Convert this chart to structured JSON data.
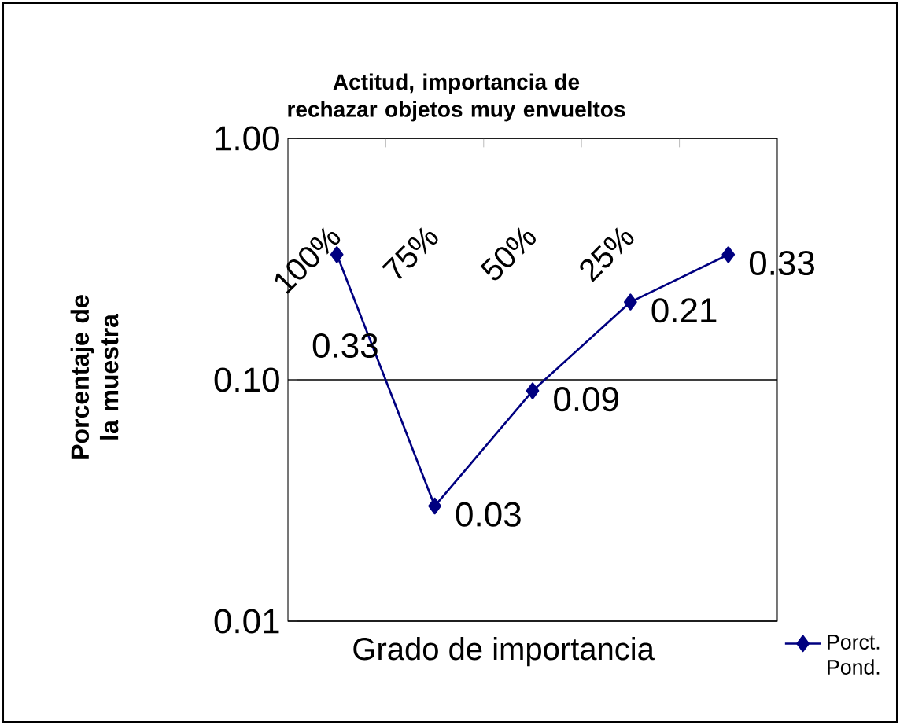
{
  "chart_data": {
    "type": "line",
    "title": "Actitud, importancia de rechazar objetos muy envueltos",
    "xlabel": "Grado de importancia",
    "ylabel": "Porcentaje de la muestra",
    "categories": [
      "100%",
      "75%",
      "50%",
      "25%",
      null
    ],
    "series": [
      {
        "name": "Porct. Pond.",
        "color": "#000080",
        "values": [
          0.33,
          0.03,
          0.09,
          0.21,
          0.33
        ]
      }
    ],
    "log": "y",
    "ylim": [
      0.01,
      1
    ],
    "yticks": [
      {
        "value": 0.01,
        "label": "0.01"
      },
      {
        "value": 0.1,
        "label": "0.10"
      },
      {
        "value": 1,
        "label": "1.00"
      }
    ],
    "grid": "y",
    "legend": "bottom right",
    "marker": "diamond",
    "line_style": "solid",
    "data_labels": true
  }
}
